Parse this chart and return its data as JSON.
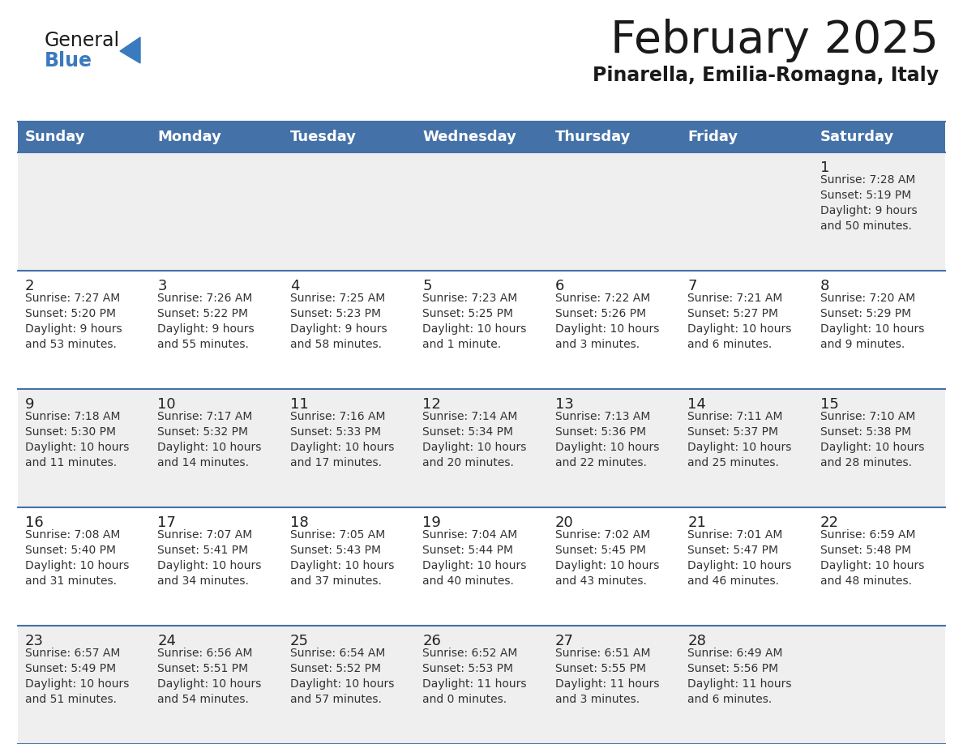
{
  "title": "February 2025",
  "subtitle": "Pinarella, Emilia-Romagna, Italy",
  "header_bg": "#4472a8",
  "header_text": "#ffffff",
  "row_bg_odd": "#efefef",
  "row_bg_even": "#ffffff",
  "border_color": "#4472a8",
  "day_names": [
    "Sunday",
    "Monday",
    "Tuesday",
    "Wednesday",
    "Thursday",
    "Friday",
    "Saturday"
  ],
  "title_color": "#1a1a1a",
  "subtitle_color": "#1a1a1a",
  "cell_text_color": "#333333",
  "day_num_color": "#222222",
  "logo_general_color": "#1a1a1a",
  "logo_blue_color": "#3a7abf",
  "logo_triangle_color": "#3a7abf",
  "calendar": [
    [
      null,
      null,
      null,
      null,
      null,
      null,
      {
        "day": 1,
        "sunrise": "7:28 AM",
        "sunset": "5:19 PM",
        "daylight": "9 hours\nand 50 minutes."
      }
    ],
    [
      {
        "day": 2,
        "sunrise": "7:27 AM",
        "sunset": "5:20 PM",
        "daylight": "9 hours\nand 53 minutes."
      },
      {
        "day": 3,
        "sunrise": "7:26 AM",
        "sunset": "5:22 PM",
        "daylight": "9 hours\nand 55 minutes."
      },
      {
        "day": 4,
        "sunrise": "7:25 AM",
        "sunset": "5:23 PM",
        "daylight": "9 hours\nand 58 minutes."
      },
      {
        "day": 5,
        "sunrise": "7:23 AM",
        "sunset": "5:25 PM",
        "daylight": "10 hours\nand 1 minute."
      },
      {
        "day": 6,
        "sunrise": "7:22 AM",
        "sunset": "5:26 PM",
        "daylight": "10 hours\nand 3 minutes."
      },
      {
        "day": 7,
        "sunrise": "7:21 AM",
        "sunset": "5:27 PM",
        "daylight": "10 hours\nand 6 minutes."
      },
      {
        "day": 8,
        "sunrise": "7:20 AM",
        "sunset": "5:29 PM",
        "daylight": "10 hours\nand 9 minutes."
      }
    ],
    [
      {
        "day": 9,
        "sunrise": "7:18 AM",
        "sunset": "5:30 PM",
        "daylight": "10 hours\nand 11 minutes."
      },
      {
        "day": 10,
        "sunrise": "7:17 AM",
        "sunset": "5:32 PM",
        "daylight": "10 hours\nand 14 minutes."
      },
      {
        "day": 11,
        "sunrise": "7:16 AM",
        "sunset": "5:33 PM",
        "daylight": "10 hours\nand 17 minutes."
      },
      {
        "day": 12,
        "sunrise": "7:14 AM",
        "sunset": "5:34 PM",
        "daylight": "10 hours\nand 20 minutes."
      },
      {
        "day": 13,
        "sunrise": "7:13 AM",
        "sunset": "5:36 PM",
        "daylight": "10 hours\nand 22 minutes."
      },
      {
        "day": 14,
        "sunrise": "7:11 AM",
        "sunset": "5:37 PM",
        "daylight": "10 hours\nand 25 minutes."
      },
      {
        "day": 15,
        "sunrise": "7:10 AM",
        "sunset": "5:38 PM",
        "daylight": "10 hours\nand 28 minutes."
      }
    ],
    [
      {
        "day": 16,
        "sunrise": "7:08 AM",
        "sunset": "5:40 PM",
        "daylight": "10 hours\nand 31 minutes."
      },
      {
        "day": 17,
        "sunrise": "7:07 AM",
        "sunset": "5:41 PM",
        "daylight": "10 hours\nand 34 minutes."
      },
      {
        "day": 18,
        "sunrise": "7:05 AM",
        "sunset": "5:43 PM",
        "daylight": "10 hours\nand 37 minutes."
      },
      {
        "day": 19,
        "sunrise": "7:04 AM",
        "sunset": "5:44 PM",
        "daylight": "10 hours\nand 40 minutes."
      },
      {
        "day": 20,
        "sunrise": "7:02 AM",
        "sunset": "5:45 PM",
        "daylight": "10 hours\nand 43 minutes."
      },
      {
        "day": 21,
        "sunrise": "7:01 AM",
        "sunset": "5:47 PM",
        "daylight": "10 hours\nand 46 minutes."
      },
      {
        "day": 22,
        "sunrise": "6:59 AM",
        "sunset": "5:48 PM",
        "daylight": "10 hours\nand 48 minutes."
      }
    ],
    [
      {
        "day": 23,
        "sunrise": "6:57 AM",
        "sunset": "5:49 PM",
        "daylight": "10 hours\nand 51 minutes."
      },
      {
        "day": 24,
        "sunrise": "6:56 AM",
        "sunset": "5:51 PM",
        "daylight": "10 hours\nand 54 minutes."
      },
      {
        "day": 25,
        "sunrise": "6:54 AM",
        "sunset": "5:52 PM",
        "daylight": "10 hours\nand 57 minutes."
      },
      {
        "day": 26,
        "sunrise": "6:52 AM",
        "sunset": "5:53 PM",
        "daylight": "11 hours\nand 0 minutes."
      },
      {
        "day": 27,
        "sunrise": "6:51 AM",
        "sunset": "5:55 PM",
        "daylight": "11 hours\nand 3 minutes."
      },
      {
        "day": 28,
        "sunrise": "6:49 AM",
        "sunset": "5:56 PM",
        "daylight": "11 hours\nand 6 minutes."
      },
      null
    ]
  ]
}
